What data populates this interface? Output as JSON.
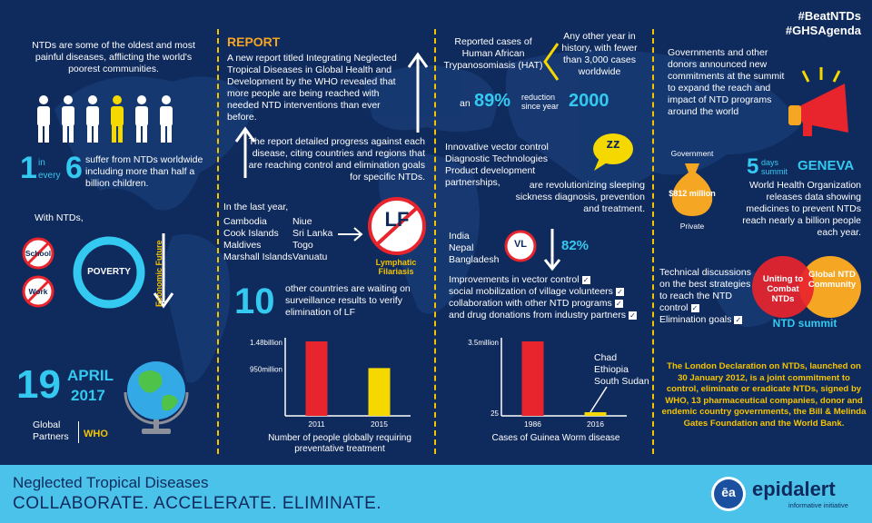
{
  "hashtags": [
    "#BeatNTDs",
    "#GHSAgenda"
  ],
  "col1": {
    "intro": "NTDs are some of the oldest and most painful diseases, afflicting the world's poorest communities.",
    "stat_one": "1",
    "stat_in": "in",
    "stat_every": "every",
    "stat_six": "6",
    "stat_text": "suffer from NTDs worldwide including more than half a billion children.",
    "with_ntds": "With NTDs,",
    "school": "School",
    "work": "Work",
    "poverty": "POVERTY",
    "economic_future": "Economic Future",
    "date_day": "19",
    "date_month": "APRIL",
    "date_year": "2017",
    "global_partners": "Global Partners",
    "who": "WHO"
  },
  "col2": {
    "report_heading": "REPORT",
    "report_text": "A new report titled Integrating Neglected Tropical Diseases in Global Health and Development by the WHO revealed that more people are being reached with needed NTD interventions than ever before.",
    "progress_text": "The report detailed progress against each disease, citing countries and regions that are reaching control and elimination goals for specific NTDs.",
    "last_year": "In the last year,",
    "countries_left": [
      "Cambodia",
      "Cook Islands",
      "Maldives",
      "Marshall Islands"
    ],
    "countries_right": [
      "Niue",
      "Sri Lanka",
      "Togo",
      "Vanuatu"
    ],
    "lf": "LF",
    "lf_label": "Lymphatic Filariasis",
    "ten": "10",
    "ten_text": "other countries are waiting on surveillance results to verify elimination of LF"
  },
  "col3": {
    "hat_text": "Reported cases of Human African Trypanosomiasis (HAT)",
    "hat_other": "Any other year in history, with fewer than 3,000 cases worldwide",
    "an": "an",
    "pct_89": "89%",
    "reduction": "reduction",
    "since_year": "since year",
    "year_2000": "2000",
    "zz": "zz",
    "innovations": [
      "Innovative vector control",
      "Diagnostic Technologies",
      "Product development partnerships,"
    ],
    "revolutionizing": "are revolutionizing sleeping sickness diagnosis, prevention and treatment.",
    "vl_countries": [
      "India",
      "Nepal",
      "Bangladesh"
    ],
    "vl": "VL",
    "pct_82": "82%",
    "improvements": [
      "Improvements in vector control",
      "social mobilization of village volunteers",
      "collaboration with other NTD programs",
      "and drug donations from industry partners"
    ],
    "gw_countries": [
      "Chad",
      "Ethiopia",
      "South Sudan"
    ]
  },
  "col4": {
    "governments_text": "Governments and other donors announced new commitments at the summit to expand the reach and impact of NTD programs around the world",
    "government": "Government",
    "amount": "$812 million",
    "private": "Private",
    "days_num": "5",
    "days": "days",
    "summit": "summit",
    "geneva": "GENEVA",
    "who_text": "World Health Organization releases data showing medicines to prevent NTDs reach nearly a billion people each year.",
    "technical": "Technical discussions on the best strategies to reach the NTD control",
    "elimination": "Elimination goals",
    "uniting": "Uniting to Combat NTDs",
    "global_community": "Global NTD Community",
    "ntd_summit": "NTD summit",
    "london": "The London Declaration on NTDs, launched on 30 January 2012, is a joint commitment to control, eliminate or eradicate NTDs, signed by WHO, 13 pharmaceutical companies, donor and endemic country governments, the Bill & Melinda Gates Foundation and the World Bank."
  },
  "footer": {
    "title": "Neglected Tropical Diseases",
    "tagline": "COLLABORATE. ACCELERATE. ELIMINATE.",
    "brand_mark": "ēa",
    "brand": "epidalert",
    "brand_sub": "informative initiative"
  },
  "chart_data": [
    {
      "type": "bar",
      "title": "",
      "xlabel": "Number of people globally requiring preventative treatment",
      "ylabel": "",
      "categories": [
        "2011",
        "2015"
      ],
      "values": [
        1.48,
        0.95
      ],
      "value_labels": [
        "1.48billion",
        "950million"
      ],
      "colors": [
        "#e8242c",
        "#f5d800"
      ],
      "grid": false
    },
    {
      "type": "bar",
      "title": "",
      "xlabel": "Cases of Guinea Worm disease",
      "ylabel": "",
      "categories": [
        "1986",
        "2016"
      ],
      "values": [
        3500000,
        25
      ],
      "value_labels": [
        "3.5million",
        "25"
      ],
      "colors": [
        "#e8242c",
        "#f5d800"
      ],
      "grid": false
    }
  ]
}
